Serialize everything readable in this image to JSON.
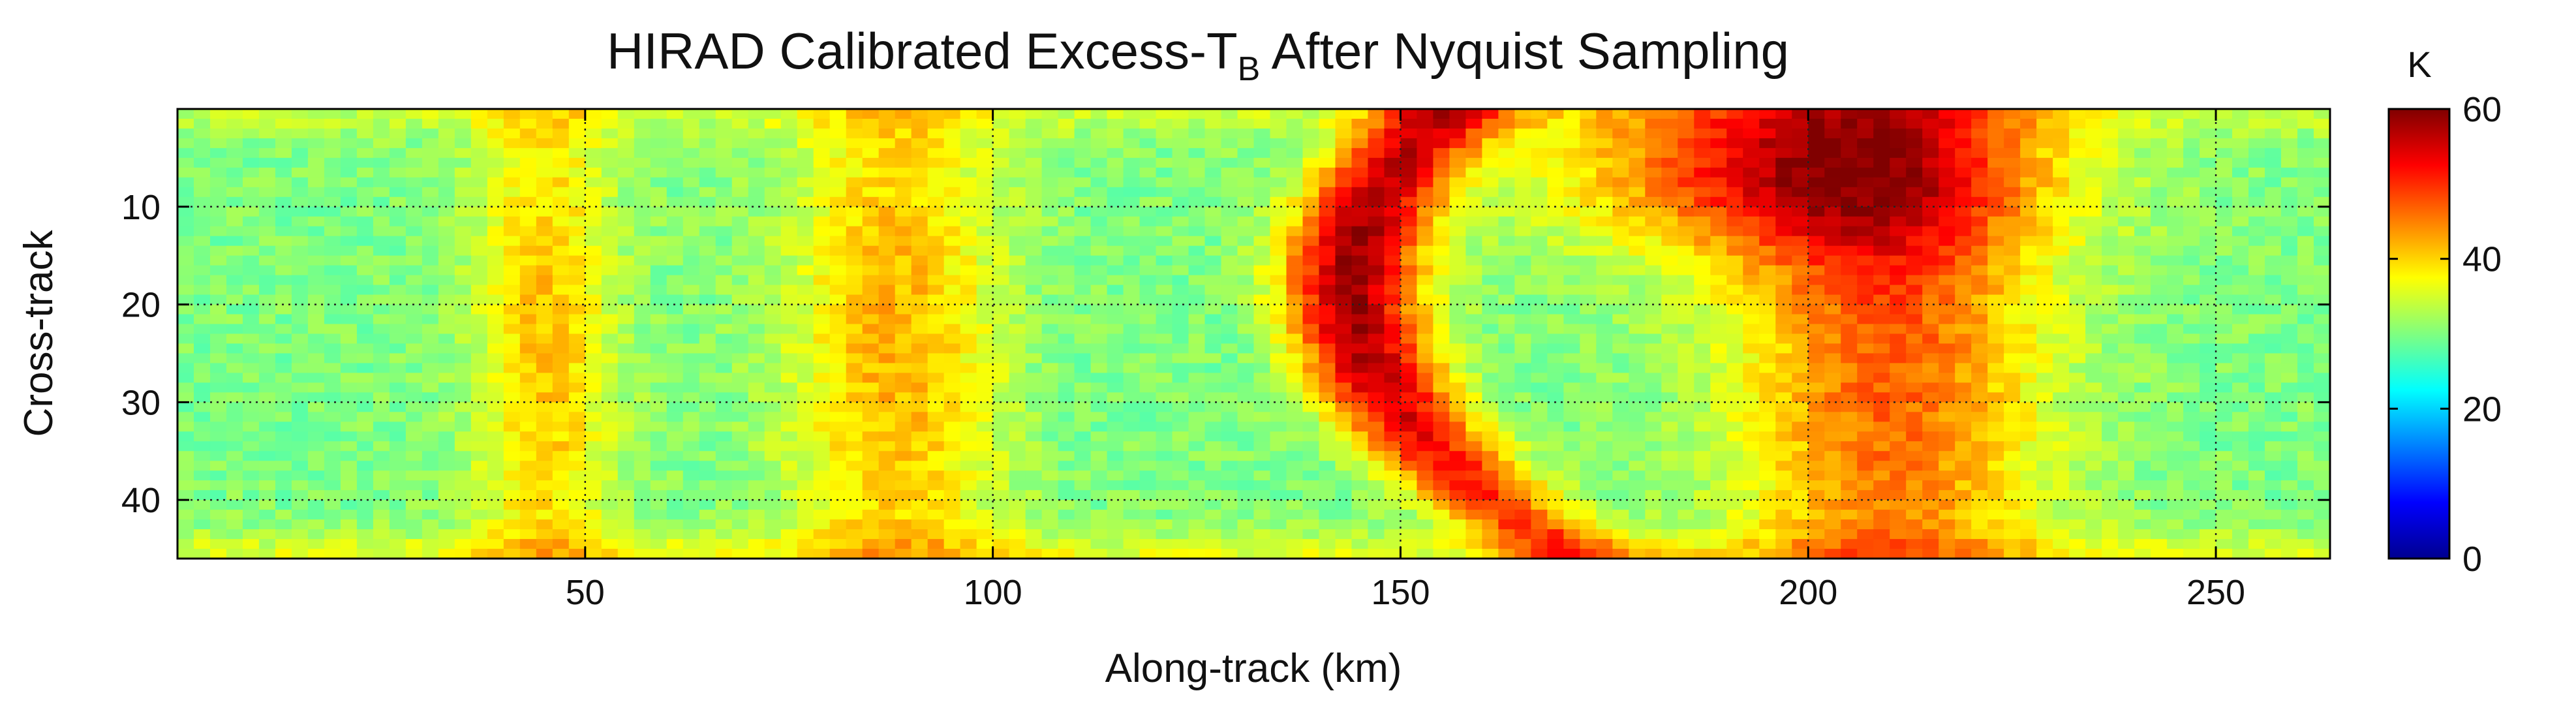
{
  "chart_data": {
    "type": "heatmap",
    "title_main": "HIRAD Calibrated Excess-T",
    "title_sub": "B",
    "title_rest": " After Nyquist Sampling",
    "xlabel": "Along-track (km)",
    "ylabel": "Cross-track",
    "xlim": [
      0,
      264
    ],
    "ylim": [
      0,
      46
    ],
    "y_reversed": true,
    "xticks": [
      50,
      100,
      150,
      200,
      250
    ],
    "yticks": [
      10,
      20,
      30,
      40
    ],
    "grid": true,
    "grid_style": "dotted",
    "colormap": "jet",
    "colorbar": {
      "label": "K",
      "range": [
        0,
        60
      ],
      "ticks": [
        0,
        20,
        40,
        60
      ],
      "colors": [
        "#00008f",
        "#0000ff",
        "#00ffff",
        "#ffff00",
        "#ff0000",
        "#800000"
      ],
      "color_stops": [
        0,
        0.125,
        0.375,
        0.625,
        0.875,
        1.0
      ]
    },
    "background_value": 30,
    "features": [
      {
        "name": "eyewall-west-band",
        "x_center": 152,
        "y_center": 18,
        "x_width": 12,
        "y_height": 40,
        "peak": 58,
        "curve_direction": "left"
      },
      {
        "name": "rainband-east",
        "x_center": 210,
        "y_center": 24,
        "x_width": 26,
        "y_height": 44,
        "peak": 47
      },
      {
        "name": "rainband-northeast",
        "x_center": 198,
        "y_center": 6,
        "x_width": 40,
        "y_height": 10,
        "peak": 50
      },
      {
        "name": "rainband-west-1",
        "x_center": 45,
        "y_center": 24,
        "x_width": 12,
        "y_height": 40,
        "peak": 41
      },
      {
        "name": "rainband-west-2",
        "x_center": 88,
        "y_center": 24,
        "x_width": 18,
        "y_height": 40,
        "peak": 42
      },
      {
        "name": "eye-clear",
        "x_center": 118,
        "y_center": 24,
        "x_width": 30,
        "y_height": 40,
        "peak": 30
      }
    ]
  }
}
